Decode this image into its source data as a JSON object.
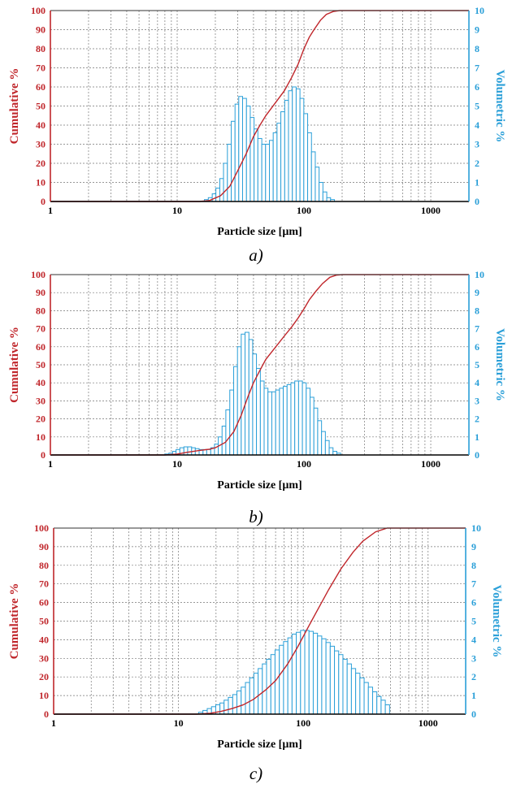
{
  "figure": {
    "colors": {
      "cumulative": "#c0262b",
      "volumetric": "#2a9fd8",
      "grid": "#777777",
      "axis": "#000000"
    }
  },
  "chart_data": [
    {
      "type": "bar",
      "caption": "a)",
      "xlabel": "Particle size [µm]",
      "ylabel_left": "Cumulative %",
      "ylabel_right": "Volumetric %",
      "x_scale": "log",
      "xlim": [
        1,
        2000
      ],
      "ylim_left": [
        0,
        100
      ],
      "ylim_right": [
        0,
        10
      ],
      "x_ticks": [
        "1",
        "10",
        "100",
        "1000"
      ],
      "y_ticks_left": [
        "0",
        "10",
        "20",
        "30",
        "40",
        "50",
        "60",
        "70",
        "80",
        "90",
        "100"
      ],
      "y_ticks_right": [
        "0",
        "1",
        "2",
        "3",
        "4",
        "5",
        "6",
        "7",
        "8",
        "9",
        "10"
      ],
      "grid": true,
      "series": [
        {
          "axis": "right",
          "type": "bar",
          "bin_edges": [
            15.3,
            16.4,
            17.6,
            18.9,
            20.2,
            21.7,
            23.2,
            24.9,
            26.7,
            28.6,
            30.6,
            32.8,
            35.2,
            37.7,
            40.4,
            43.3,
            46.5,
            49.8,
            53.4,
            57.2,
            61.3,
            65.7,
            70.5,
            75.5,
            81.0,
            86.8,
            93.0,
            99.7,
            106.9,
            114.6,
            122.8,
            131.6,
            141.1,
            151.3,
            162.1,
            173.8,
            186.3,
            199.7,
            214.0,
            229.4
          ],
          "values": [
            0.0,
            0.1,
            0.2,
            0.4,
            0.7,
            1.2,
            2.0,
            3.0,
            4.2,
            5.1,
            5.5,
            5.4,
            5.0,
            4.4,
            3.8,
            3.3,
            3.0,
            3.0,
            3.2,
            3.6,
            4.1,
            4.7,
            5.3,
            5.8,
            6.0,
            5.9,
            5.4,
            4.6,
            3.6,
            2.6,
            1.8,
            1.0,
            0.5,
            0.2,
            0.1,
            0.0,
            0.0,
            0.0,
            0.0
          ]
        },
        {
          "axis": "left",
          "type": "line",
          "x": [
            1,
            15,
            18,
            22,
            26,
            30,
            35,
            40,
            45,
            50,
            60,
            70,
            80,
            90,
            100,
            110,
            120,
            135,
            150,
            170,
            190,
            210,
            230,
            2000
          ],
          "y": [
            0,
            0,
            0.5,
            3,
            8,
            16,
            25,
            34,
            40,
            45,
            52,
            58,
            65,
            72,
            80,
            86,
            90,
            95,
            98,
            99.5,
            100,
            100,
            100,
            100
          ]
        }
      ]
    },
    {
      "type": "bar",
      "caption": "b)",
      "xlabel": "Particle size [µm]",
      "ylabel_left": "Cumulative %",
      "ylabel_right": "Volumetric %",
      "x_scale": "log",
      "xlim": [
        1,
        2000
      ],
      "ylim_left": [
        0,
        100
      ],
      "ylim_right": [
        0,
        10
      ],
      "x_ticks": [
        "1",
        "10",
        "100",
        "1000"
      ],
      "y_ticks_left": [
        "0",
        "10",
        "20",
        "30",
        "40",
        "50",
        "60",
        "70",
        "80",
        "90",
        "100"
      ],
      "y_ticks_right": [
        "0",
        "1",
        "2",
        "3",
        "4",
        "5",
        "6",
        "7",
        "8",
        "9",
        "10"
      ],
      "grid": true,
      "series": [
        {
          "axis": "right",
          "type": "bar",
          "bin_edges": [
            8.0,
            8.6,
            9.2,
            9.8,
            10.5,
            11.3,
            12.1,
            13.0,
            13.9,
            14.9,
            16.0,
            17.1,
            18.4,
            19.7,
            21.1,
            22.6,
            24.2,
            26.0,
            27.9,
            29.9,
            32.0,
            34.3,
            36.8,
            39.4,
            42.2,
            45.3,
            48.5,
            52.0,
            55.8,
            59.8,
            64.1,
            68.7,
            73.6,
            78.9,
            84.6,
            90.7,
            97.2,
            104.2,
            111.7,
            119.7,
            128.3,
            137.6,
            147.5,
            158.1,
            169.5,
            181.7,
            194.8,
            208.8,
            223.8
          ],
          "values": [
            0.05,
            0.1,
            0.2,
            0.3,
            0.4,
            0.45,
            0.45,
            0.4,
            0.35,
            0.3,
            0.3,
            0.3,
            0.4,
            0.6,
            1.0,
            1.6,
            2.5,
            3.6,
            4.9,
            6.0,
            6.7,
            6.8,
            6.4,
            5.6,
            4.8,
            4.1,
            3.7,
            3.5,
            3.5,
            3.6,
            3.7,
            3.8,
            3.9,
            4.0,
            4.1,
            4.1,
            4.0,
            3.7,
            3.2,
            2.6,
            1.9,
            1.3,
            0.8,
            0.4,
            0.2,
            0.1,
            0.0,
            0.0
          ]
        },
        {
          "axis": "left",
          "type": "line",
          "x": [
            1,
            8,
            10,
            12,
            15,
            18,
            20,
            24,
            28,
            32,
            36,
            40,
            45,
            50,
            60,
            70,
            80,
            90,
            100,
            110,
            125,
            140,
            160,
            180,
            200,
            220,
            2000
          ],
          "y": [
            0,
            0,
            0.5,
            1.5,
            2.5,
            3.2,
            4,
            7,
            13,
            22,
            32,
            40,
            47,
            53,
            60,
            66,
            71,
            76,
            81,
            86,
            91,
            95,
            98.5,
            99.7,
            100,
            100,
            100
          ]
        }
      ]
    },
    {
      "type": "bar",
      "caption": "c)",
      "xlabel": "Particle size [µm]",
      "ylabel_left": "Cumulative %",
      "ylabel_right": "Volumetric %",
      "x_scale": "log",
      "xlim": [
        1,
        2000
      ],
      "ylim_left": [
        0,
        100
      ],
      "ylim_right": [
        0,
        10
      ],
      "x_ticks": [
        "1",
        "10",
        "100",
        "1000"
      ],
      "y_ticks_left": [
        "0",
        "10",
        "20",
        "30",
        "40",
        "50",
        "60",
        "70",
        "80",
        "90",
        "100"
      ],
      "y_ticks_right": [
        "0",
        "1",
        "2",
        "3",
        "4",
        "5",
        "6",
        "7",
        "8",
        "9",
        "10"
      ],
      "grid": true,
      "series": [
        {
          "axis": "right",
          "type": "bar",
          "bin_edges": [
            14.5,
            15.7,
            17.0,
            18.4,
            19.9,
            21.5,
            23.2,
            25.1,
            27.2,
            29.4,
            31.8,
            34.4,
            37.2,
            40.2,
            43.5,
            47.0,
            50.8,
            55.0,
            59.4,
            64.3,
            69.5,
            75.2,
            81.3,
            87.9,
            95.1,
            102.8,
            111.2,
            120.2,
            130.0,
            140.6,
            152.0,
            164.4,
            177.8,
            192.2,
            207.8,
            224.7,
            243.0,
            262.8,
            284.2,
            307.3,
            332.2,
            359.3,
            388.5,
            420.1,
            454.2,
            491.2
          ],
          "values": [
            0.1,
            0.2,
            0.3,
            0.4,
            0.5,
            0.6,
            0.75,
            0.9,
            1.05,
            1.25,
            1.45,
            1.7,
            1.95,
            2.2,
            2.45,
            2.7,
            2.95,
            3.2,
            3.45,
            3.7,
            3.9,
            4.1,
            4.3,
            4.4,
            4.5,
            4.5,
            4.45,
            4.35,
            4.2,
            4.05,
            3.85,
            3.65,
            3.4,
            3.2,
            2.95,
            2.7,
            2.45,
            2.2,
            1.95,
            1.7,
            1.45,
            1.2,
            0.95,
            0.75,
            0.5
          ]
        },
        {
          "axis": "left",
          "type": "line",
          "x": [
            1,
            14,
            18,
            22,
            27,
            33,
            40,
            50,
            60,
            75,
            90,
            110,
            130,
            160,
            200,
            250,
            300,
            380,
            470,
            2000
          ],
          "y": [
            0,
            0,
            0.5,
            1.5,
            3,
            5,
            8,
            13,
            18,
            27,
            36,
            47,
            56,
            67,
            78,
            87,
            93,
            98,
            100,
            100
          ]
        }
      ]
    }
  ]
}
